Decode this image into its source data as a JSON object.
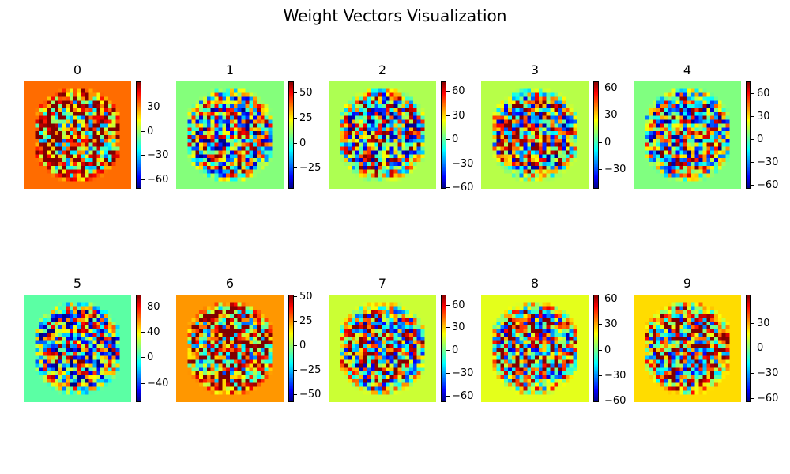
{
  "chart_data": {
    "type": "heatmap",
    "title": "Weight Vectors Visualization",
    "colormap": "jet",
    "grid_size": [
      28,
      28
    ],
    "panels": [
      {
        "label": "0",
        "vmin": -72,
        "vmax": 62,
        "center": 31,
        "ticks": [
          -60,
          -30,
          0,
          30
        ]
      },
      {
        "label": "1",
        "vmin": -46,
        "vmax": 61,
        "center": 8,
        "ticks": [
          -25,
          0,
          25,
          50
        ]
      },
      {
        "label": "2",
        "vmin": -62,
        "vmax": 72,
        "center": 11,
        "ticks": [
          -60,
          -30,
          0,
          30,
          60
        ]
      },
      {
        "label": "3",
        "vmin": -52,
        "vmax": 67,
        "center": 14,
        "ticks": [
          -30,
          0,
          30,
          60
        ]
      },
      {
        "label": "4",
        "vmin": -65,
        "vmax": 75,
        "center": 5,
        "ticks": [
          -60,
          -30,
          0,
          30,
          60
        ]
      },
      {
        "label": "5",
        "vmin": -70,
        "vmax": 98,
        "center": 8,
        "ticks": [
          -40,
          0,
          40,
          80
        ]
      },
      {
        "label": "6",
        "vmin": -58,
        "vmax": 52,
        "center": 22,
        "ticks": [
          -50,
          -25,
          0,
          25,
          50
        ]
      },
      {
        "label": "7",
        "vmin": -68,
        "vmax": 73,
        "center": 13,
        "ticks": [
          -60,
          -30,
          0,
          30,
          60
        ]
      },
      {
        "label": "8",
        "vmin": -62,
        "vmax": 65,
        "center": 14,
        "ticks": [
          -60,
          -30,
          0,
          30,
          60
        ]
      },
      {
        "label": "9",
        "vmin": -65,
        "vmax": 64,
        "center": 20,
        "ticks": [
          -60,
          -30,
          0,
          30
        ]
      }
    ]
  }
}
